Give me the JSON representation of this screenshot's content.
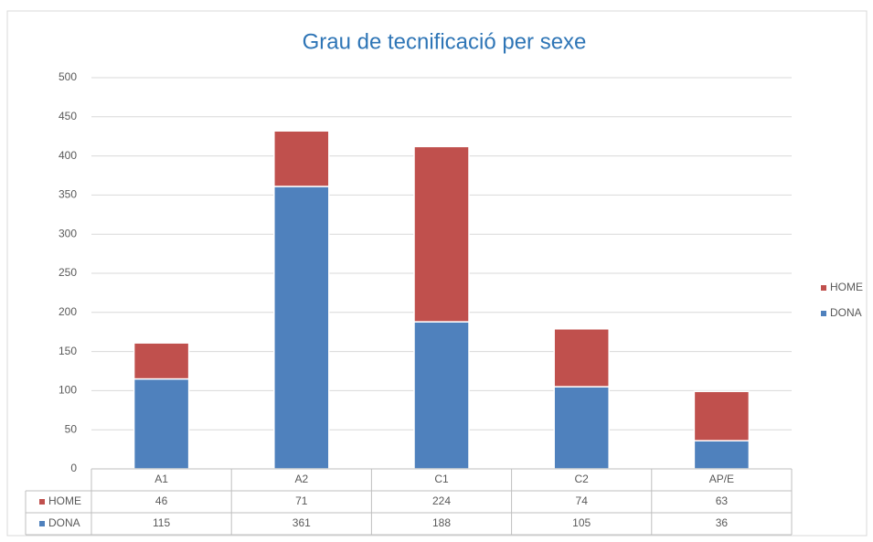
{
  "chart_data": {
    "type": "bar",
    "stacked": true,
    "title": "Grau de tecnificació per sexe",
    "categories": [
      "A1",
      "A2",
      "C1",
      "C2",
      "AP/E"
    ],
    "series": [
      {
        "name": "HOME",
        "color": "#c0504d",
        "values": [
          46,
          71,
          224,
          74,
          63
        ]
      },
      {
        "name": "DONA",
        "color": "#4f81bd",
        "values": [
          115,
          361,
          188,
          105,
          36
        ]
      }
    ],
    "ylim": [
      0,
      500
    ],
    "yticks": [
      0,
      50,
      100,
      150,
      200,
      250,
      300,
      350,
      400,
      450,
      500
    ],
    "grid": true,
    "legend": "right",
    "data_table": true
  }
}
